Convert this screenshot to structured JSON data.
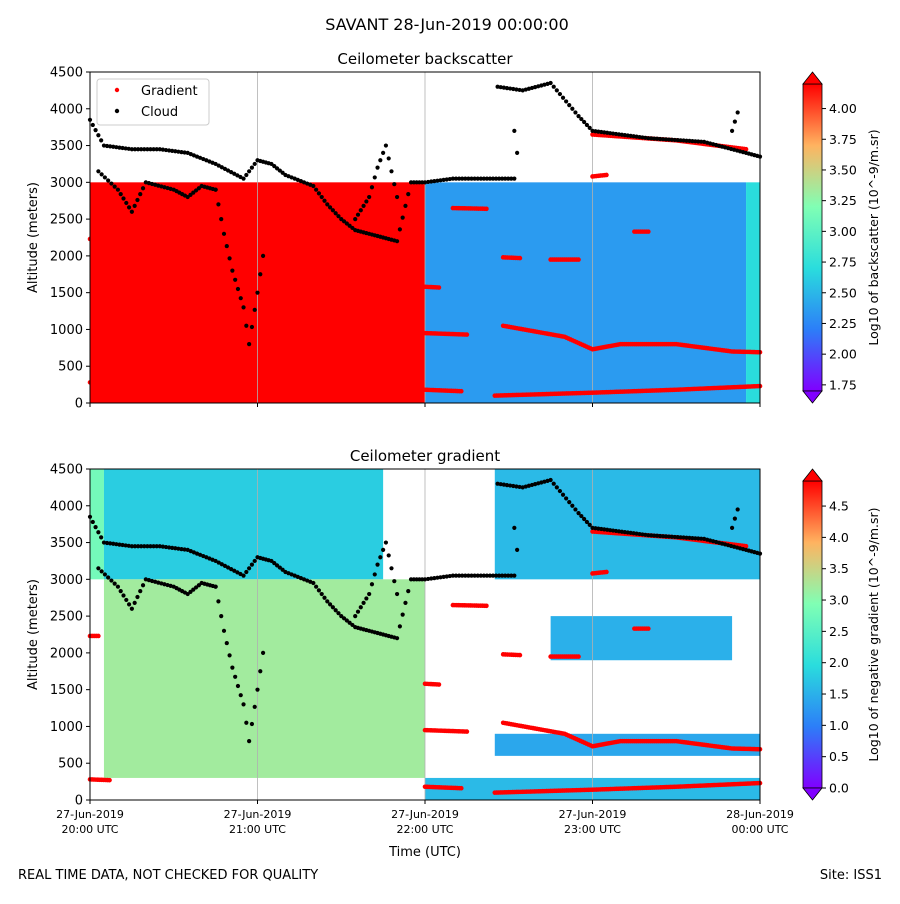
{
  "suptitle": "SAVANT 28-Jun-2019 00:00:00",
  "footer": {
    "left": "REAL TIME DATA, NOT CHECKED FOR QUALITY",
    "right": "Site: ISS1"
  },
  "x_axis": {
    "label": "Time (UTC)",
    "tick_labels": [
      [
        "27-Jun-2019",
        "20:00 UTC"
      ],
      [
        "27-Jun-2019",
        "21:00 UTC"
      ],
      [
        "27-Jun-2019",
        "22:00 UTC"
      ],
      [
        "27-Jun-2019",
        "23:00 UTC"
      ],
      [
        "28-Jun-2019",
        "00:00 UTC"
      ]
    ]
  },
  "colors": {
    "gradient_marker": "#ff0000",
    "cloud_marker": "#000000",
    "colormap": "rainbow"
  },
  "chart_data": [
    {
      "type": "heatmap",
      "title": "Ceilometer backscatter",
      "xlabel": "Time (UTC)",
      "ylabel": "Altitude (meters)",
      "xlim": [
        "2019-06-27T20:00",
        "2019-06-28T00:00"
      ],
      "ylim": [
        0,
        4500
      ],
      "yticks": [
        0,
        500,
        1000,
        1500,
        2000,
        2500,
        3000,
        3500,
        4000,
        4500
      ],
      "grid": "vertical lines at x ticks",
      "show_xtick_labels": false,
      "legend": {
        "placement": "top-left",
        "entries": [
          "Gradient",
          "Cloud"
        ]
      },
      "colorbar": {
        "label": "Log10 of backscatter (10^-9/m.sr)",
        "range": [
          1.7,
          4.2
        ],
        "ticks": [
          "1.75",
          "2.00",
          "2.25",
          "2.50",
          "2.75",
          "3.00",
          "3.25",
          "3.50",
          "3.75",
          "4.00"
        ]
      },
      "regions": [
        {
          "t0": "20:00",
          "t1": "22:00",
          "alt_from": 0,
          "alt_to": 3000,
          "value": 4.2
        },
        {
          "t0": "22:00",
          "t1": "23:55",
          "alt_from": 0,
          "alt_to": 3000,
          "value": 2.35
        },
        {
          "t0": "23:55",
          "t1": "00:00",
          "alt_from": 0,
          "alt_to": 3000,
          "value": 2.7
        }
      ],
      "series": [
        {
          "name": "Gradient",
          "segments": [
            [
              [
                "20:00",
                280
              ],
              [
                "20:07",
                270
              ]
            ],
            [
              [
                "20:00",
                2230
              ],
              [
                "20:03",
                2230
              ]
            ],
            [
              [
                "22:00",
                180
              ],
              [
                "22:13",
                160
              ]
            ],
            [
              [
                "22:00",
                950
              ],
              [
                "22:15",
                930
              ]
            ],
            [
              [
                "22:00",
                1580
              ],
              [
                "22:05",
                1570
              ]
            ],
            [
              [
                "22:10",
                2650
              ],
              [
                "22:22",
                2640
              ]
            ],
            [
              [
                "22:28",
                1980
              ],
              [
                "22:34",
                1970
              ]
            ],
            [
              [
                "22:45",
                1950
              ],
              [
                "22:55",
                1950
              ]
            ],
            [
              [
                "22:25",
                100
              ],
              [
                "23:00",
                140
              ],
              [
                "23:30",
                180
              ],
              [
                "00:00",
                230
              ]
            ],
            [
              [
                "22:28",
                1050
              ],
              [
                "22:50",
                900
              ],
              [
                "23:00",
                730
              ],
              [
                "23:10",
                800
              ],
              [
                "23:30",
                800
              ],
              [
                "23:50",
                700
              ],
              [
                "00:00",
                690
              ]
            ],
            [
              [
                "23:00",
                3080
              ],
              [
                "23:05",
                3100
              ]
            ],
            [
              [
                "23:15",
                2330
              ],
              [
                "23:20",
                2330
              ]
            ],
            [
              [
                "23:00",
                3650
              ],
              [
                "23:30",
                3570
              ],
              [
                "23:55",
                3450
              ]
            ]
          ]
        },
        {
          "name": "Cloud",
          "segments": [
            [
              [
                "20:00",
                3850
              ],
              [
                "20:05",
                3500
              ],
              [
                "20:15",
                3450
              ],
              [
                "20:25",
                3450
              ],
              [
                "20:35",
                3400
              ],
              [
                "20:45",
                3250
              ],
              [
                "20:55",
                3050
              ],
              [
                "21:00",
                3300
              ],
              [
                "21:05",
                3250
              ],
              [
                "21:10",
                3100
              ],
              [
                "21:20",
                2950
              ],
              [
                "21:25",
                2700
              ],
              [
                "21:30",
                2500
              ],
              [
                "21:35",
                2350
              ],
              [
                "21:40",
                2300
              ],
              [
                "21:45",
                2250
              ],
              [
                "21:50",
                2200
              ],
              [
                "21:55",
                3000
              ],
              [
                "22:00",
                3000
              ],
              [
                "22:10",
                3050
              ],
              [
                "22:20",
                3050
              ],
              [
                "22:32",
                3050
              ]
            ],
            [
              [
                "20:03",
                3150
              ],
              [
                "20:10",
                2900
              ],
              [
                "20:15",
                2600
              ],
              [
                "20:20",
                3000
              ],
              [
                "20:30",
                2900
              ],
              [
                "20:35",
                2800
              ],
              [
                "20:40",
                2950
              ],
              [
                "20:45",
                2900
              ]
            ],
            [
              [
                "20:45",
                2900
              ],
              [
                "20:48",
                2300
              ],
              [
                "20:51",
                1800
              ],
              [
                "20:55",
                1300
              ],
              [
                "20:57",
                800
              ],
              [
                "21:00",
                1500
              ],
              [
                "21:02",
                2000
              ]
            ],
            [
              [
                "21:35",
                2500
              ],
              [
                "21:40",
                2800
              ],
              [
                "21:43",
                3200
              ],
              [
                "21:46",
                3500
              ],
              [
                "21:50",
                2800
              ]
            ],
            [
              [
                "22:26",
                4300
              ],
              [
                "22:35",
                4250
              ],
              [
                "22:45",
                4350
              ],
              [
                "22:55",
                3900
              ],
              [
                "23:00",
                3700
              ],
              [
                "23:20",
                3600
              ],
              [
                "23:40",
                3550
              ],
              [
                "23:55",
                3400
              ],
              [
                "00:00",
                3350
              ]
            ],
            [
              [
                "22:32",
                3700
              ],
              [
                "22:33",
                3400
              ]
            ],
            [
              [
                "23:50",
                3700
              ],
              [
                "23:52",
                3950
              ]
            ]
          ]
        }
      ]
    },
    {
      "type": "heatmap",
      "title": "Ceilometer gradient",
      "xlabel": "Time (UTC)",
      "ylabel": "Altitude (meters)",
      "xlim": [
        "2019-06-27T20:00",
        "2019-06-28T00:00"
      ],
      "ylim": [
        0,
        4500
      ],
      "yticks": [
        0,
        500,
        1000,
        1500,
        2000,
        2500,
        3000,
        3500,
        4000,
        4500
      ],
      "grid": "vertical lines at x ticks",
      "show_xtick_labels": true,
      "colorbar": {
        "label": "Log10 of negative gradient (10^-9/m.sr)",
        "range": [
          0,
          4.9
        ],
        "ticks": [
          "0.0",
          "0.5",
          "1.0",
          "1.5",
          "2.0",
          "2.5",
          "3.0",
          "3.5",
          "4.0",
          "4.5"
        ]
      },
      "regions": [
        {
          "t0": "20:00",
          "t1": "20:05",
          "alt_from": 3000,
          "alt_to": 4500,
          "value": 2.8
        },
        {
          "t0": "20:05",
          "t1": "21:45",
          "alt_from": 3000,
          "alt_to": 4500,
          "value": 1.8
        },
        {
          "t0": "22:25",
          "t1": "00:00",
          "alt_from": 3000,
          "alt_to": 4500,
          "value": 1.6
        },
        {
          "t0": "20:05",
          "t1": "22:00",
          "alt_from": 300,
          "alt_to": 3000,
          "value": 3.2
        },
        {
          "t0": "22:00",
          "t1": "00:00",
          "alt_from": 0,
          "alt_to": 300,
          "value": 1.6
        },
        {
          "t0": "22:25",
          "t1": "00:00",
          "alt_from": 600,
          "alt_to": 900,
          "value": 1.4
        },
        {
          "t0": "22:45",
          "t1": "23:50",
          "alt_from": 1900,
          "alt_to": 2500,
          "value": 1.5
        }
      ],
      "series": [
        {
          "name": "Gradient",
          "segments": [
            [
              [
                "20:00",
                280
              ],
              [
                "20:07",
                270
              ]
            ],
            [
              [
                "20:00",
                2230
              ],
              [
                "20:03",
                2230
              ]
            ],
            [
              [
                "22:00",
                180
              ],
              [
                "22:13",
                160
              ]
            ],
            [
              [
                "22:00",
                950
              ],
              [
                "22:15",
                930
              ]
            ],
            [
              [
                "22:00",
                1580
              ],
              [
                "22:05",
                1570
              ]
            ],
            [
              [
                "22:10",
                2650
              ],
              [
                "22:22",
                2640
              ]
            ],
            [
              [
                "22:28",
                1980
              ],
              [
                "22:34",
                1970
              ]
            ],
            [
              [
                "22:45",
                1950
              ],
              [
                "22:55",
                1950
              ]
            ],
            [
              [
                "22:25",
                100
              ],
              [
                "23:00",
                140
              ],
              [
                "23:30",
                180
              ],
              [
                "00:00",
                230
              ]
            ],
            [
              [
                "22:28",
                1050
              ],
              [
                "22:50",
                900
              ],
              [
                "23:00",
                730
              ],
              [
                "23:10",
                800
              ],
              [
                "23:30",
                800
              ],
              [
                "23:50",
                700
              ],
              [
                "00:00",
                690
              ]
            ],
            [
              [
                "23:00",
                3080
              ],
              [
                "23:05",
                3100
              ]
            ],
            [
              [
                "23:15",
                2330
              ],
              [
                "23:20",
                2330
              ]
            ],
            [
              [
                "23:00",
                3650
              ],
              [
                "23:30",
                3570
              ],
              [
                "23:55",
                3450
              ]
            ]
          ]
        },
        {
          "name": "Cloud",
          "segments": [
            [
              [
                "20:00",
                3850
              ],
              [
                "20:05",
                3500
              ],
              [
                "20:15",
                3450
              ],
              [
                "20:25",
                3450
              ],
              [
                "20:35",
                3400
              ],
              [
                "20:45",
                3250
              ],
              [
                "20:55",
                3050
              ],
              [
                "21:00",
                3300
              ],
              [
                "21:05",
                3250
              ],
              [
                "21:10",
                3100
              ],
              [
                "21:20",
                2950
              ],
              [
                "21:25",
                2700
              ],
              [
                "21:30",
                2500
              ],
              [
                "21:35",
                2350
              ],
              [
                "21:40",
                2300
              ],
              [
                "21:45",
                2250
              ],
              [
                "21:50",
                2200
              ],
              [
                "21:55",
                3000
              ],
              [
                "22:00",
                3000
              ],
              [
                "22:10",
                3050
              ],
              [
                "22:20",
                3050
              ],
              [
                "22:32",
                3050
              ]
            ],
            [
              [
                "20:03",
                3150
              ],
              [
                "20:10",
                2900
              ],
              [
                "20:15",
                2600
              ],
              [
                "20:20",
                3000
              ],
              [
                "20:30",
                2900
              ],
              [
                "20:35",
                2800
              ],
              [
                "20:40",
                2950
              ],
              [
                "20:45",
                2900
              ]
            ],
            [
              [
                "20:45",
                2900
              ],
              [
                "20:48",
                2300
              ],
              [
                "20:51",
                1800
              ],
              [
                "20:55",
                1300
              ],
              [
                "20:57",
                800
              ],
              [
                "21:00",
                1500
              ],
              [
                "21:02",
                2000
              ]
            ],
            [
              [
                "21:35",
                2500
              ],
              [
                "21:40",
                2800
              ],
              [
                "21:43",
                3200
              ],
              [
                "21:46",
                3500
              ],
              [
                "21:50",
                2800
              ]
            ],
            [
              [
                "22:26",
                4300
              ],
              [
                "22:35",
                4250
              ],
              [
                "22:45",
                4350
              ],
              [
                "22:55",
                3900
              ],
              [
                "23:00",
                3700
              ],
              [
                "23:20",
                3600
              ],
              [
                "23:40",
                3550
              ],
              [
                "23:55",
                3400
              ],
              [
                "00:00",
                3350
              ]
            ],
            [
              [
                "22:32",
                3700
              ],
              [
                "22:33",
                3400
              ]
            ],
            [
              [
                "23:50",
                3700
              ],
              [
                "23:52",
                3950
              ]
            ]
          ]
        }
      ]
    }
  ]
}
